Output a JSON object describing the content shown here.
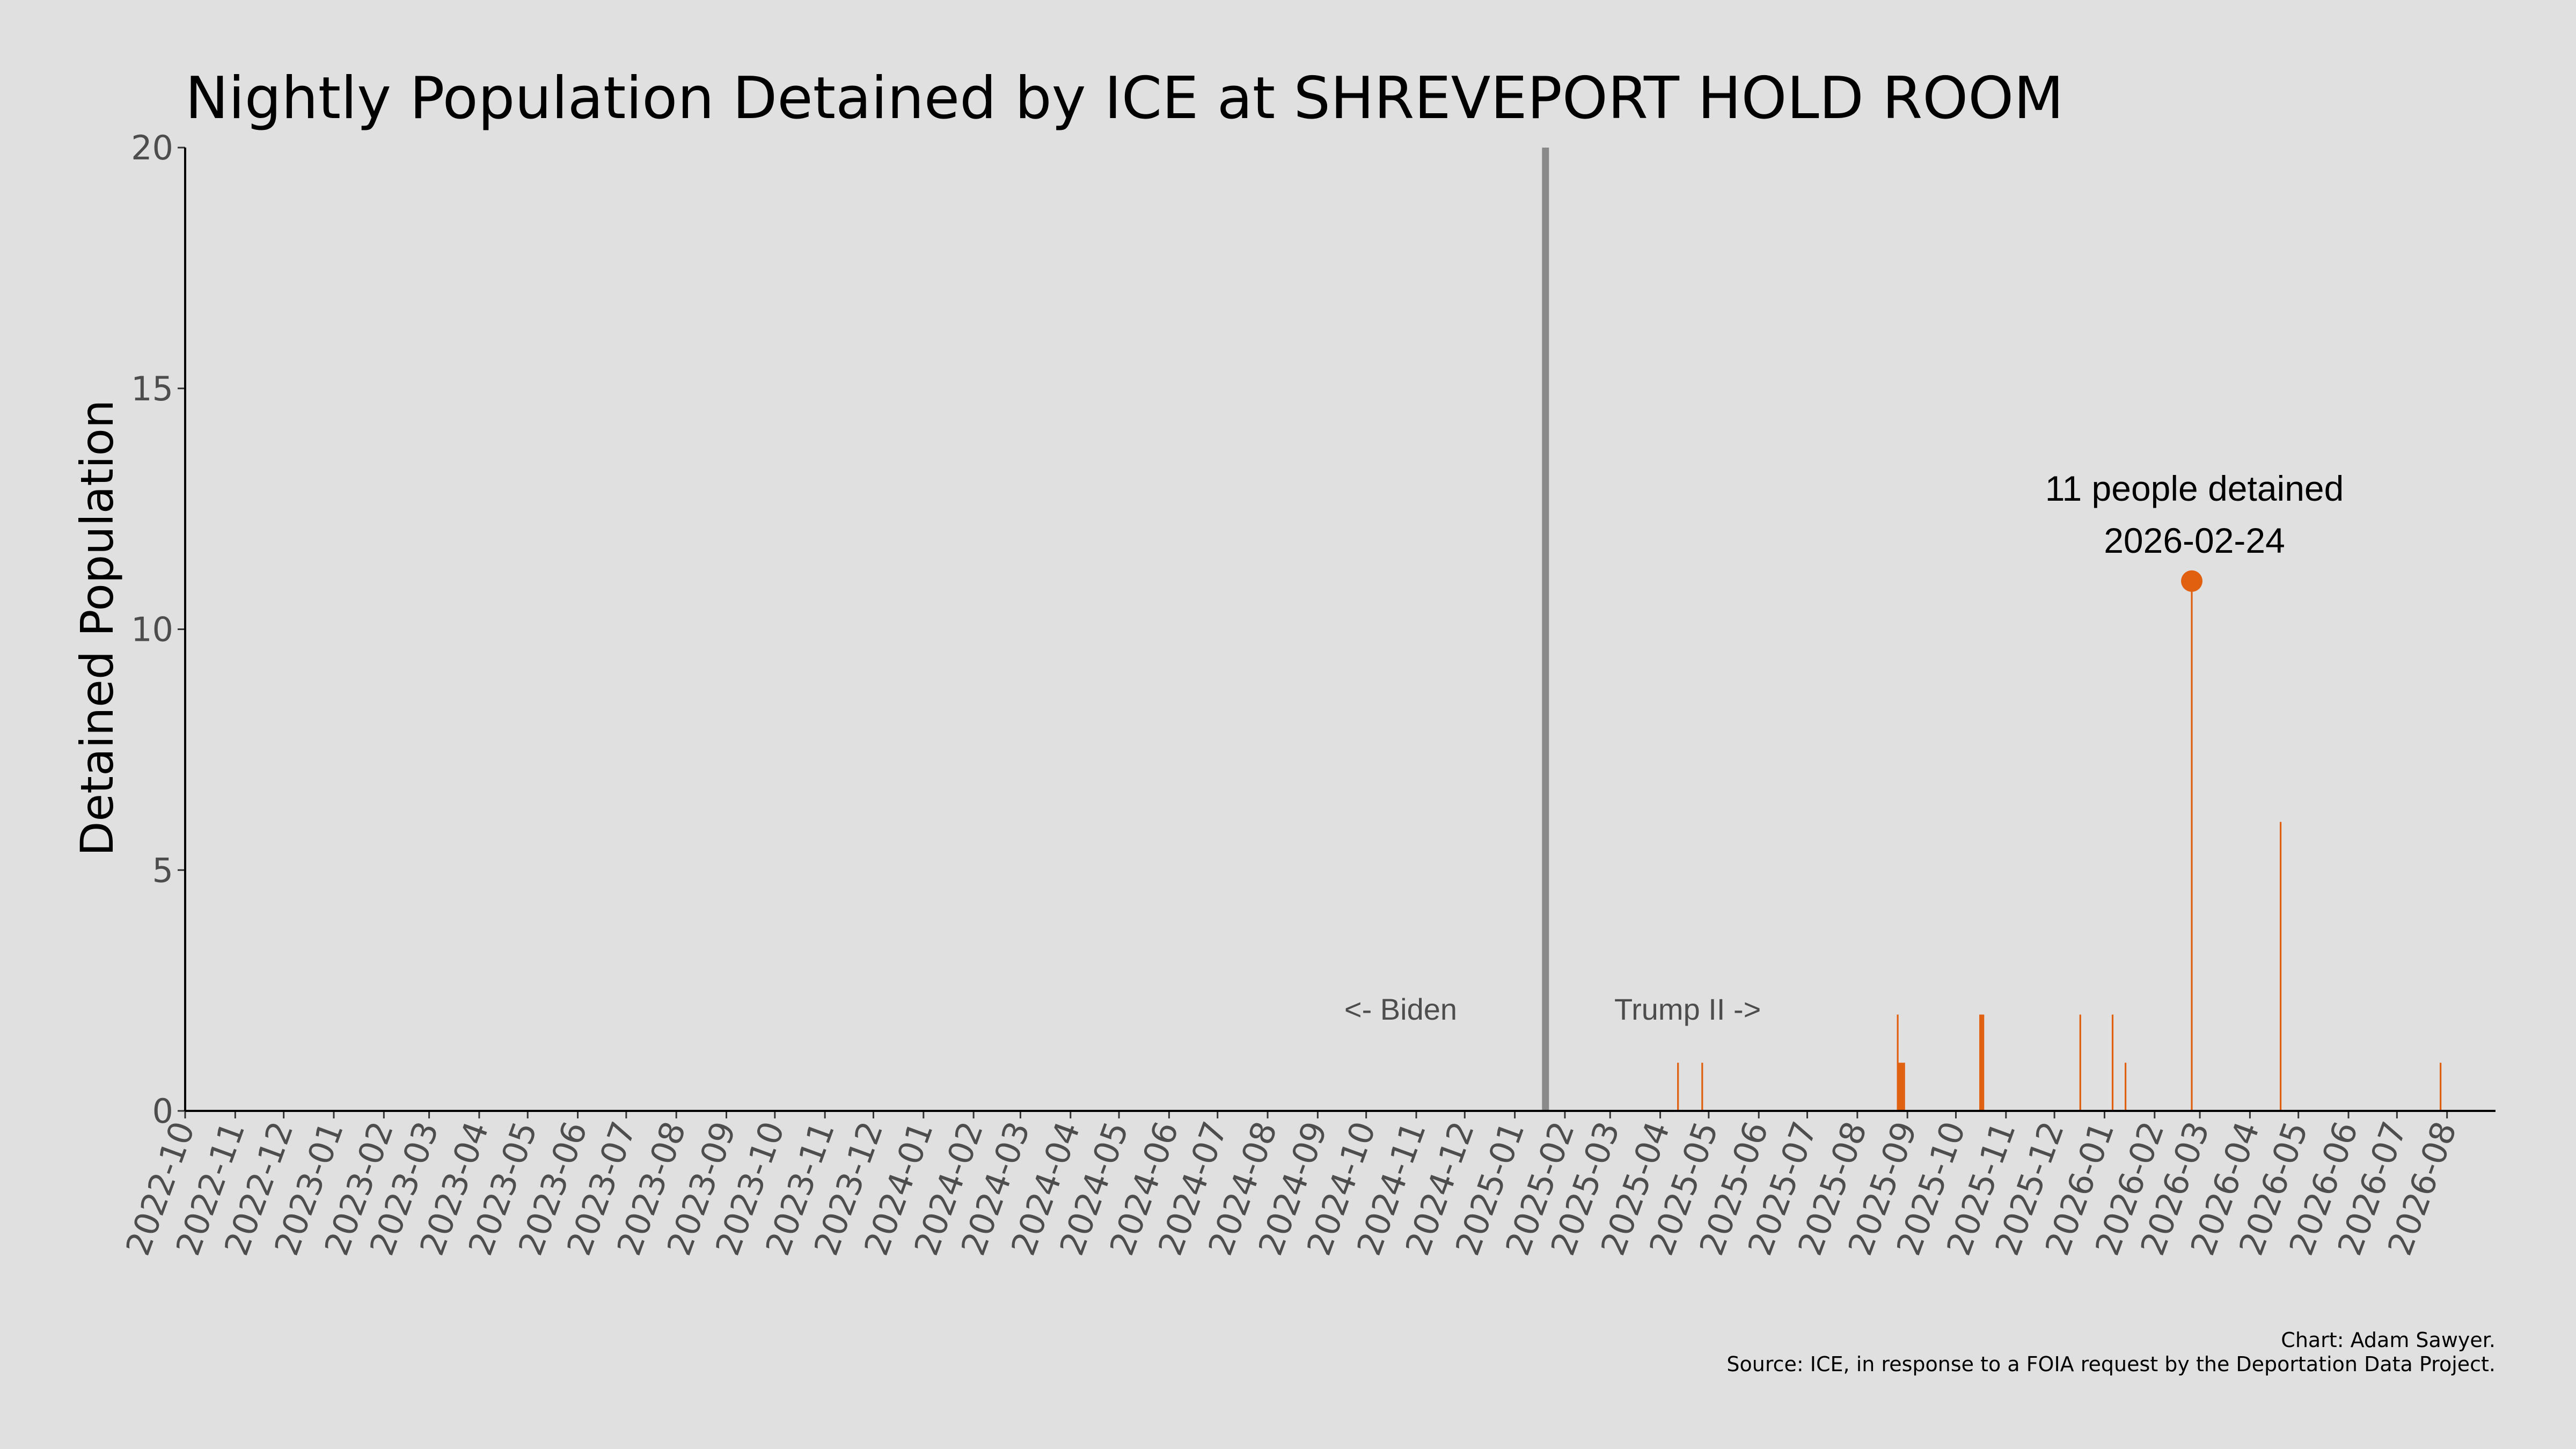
{
  "chart_data": {
    "type": "bar",
    "title": "Nightly Population Detained by ICE at SHREVEPORT HOLD ROOM",
    "ylabel": "Detained Population",
    "xlabel": "",
    "ylim": [
      0,
      20
    ],
    "xlim": [
      "2022-10-01",
      "2026-08-31"
    ],
    "y_ticks": [
      0,
      5,
      10,
      15,
      20
    ],
    "x_ticks": [
      "2022-10",
      "2022-11",
      "2022-12",
      "2023-01",
      "2023-02",
      "2023-03",
      "2023-04",
      "2023-05",
      "2023-06",
      "2023-07",
      "2023-08",
      "2023-09",
      "2023-10",
      "2023-11",
      "2023-12",
      "2024-01",
      "2024-02",
      "2024-03",
      "2024-04",
      "2024-05",
      "2024-06",
      "2024-07",
      "2024-08",
      "2024-09",
      "2024-10",
      "2024-11",
      "2024-12",
      "2025-01",
      "2025-02",
      "2025-03",
      "2025-04",
      "2025-05",
      "2025-06",
      "2025-07",
      "2025-08",
      "2025-09",
      "2025-10",
      "2025-11",
      "2025-12",
      "2026-01",
      "2026-02",
      "2026-03",
      "2026-04",
      "2026-05",
      "2026-06",
      "2026-07",
      "2026-08"
    ],
    "series_color": "#e06010",
    "points": [
      {
        "date": "2025-04-12",
        "value": 1
      },
      {
        "date": "2025-04-27",
        "value": 1
      },
      {
        "date": "2025-08-26",
        "value": 2
      },
      {
        "date": "2025-08-27",
        "value": 1
      },
      {
        "date": "2025-08-28",
        "value": 1
      },
      {
        "date": "2025-08-29",
        "value": 1
      },
      {
        "date": "2025-08-30",
        "value": 1
      },
      {
        "date": "2025-10-16",
        "value": 2
      },
      {
        "date": "2025-10-17",
        "value": 2
      },
      {
        "date": "2025-10-18",
        "value": 2
      },
      {
        "date": "2025-12-17",
        "value": 2
      },
      {
        "date": "2026-01-06",
        "value": 2
      },
      {
        "date": "2026-01-14",
        "value": 1
      },
      {
        "date": "2026-02-24",
        "value": 11
      },
      {
        "date": "2026-04-20",
        "value": 6
      },
      {
        "date": "2026-07-28",
        "value": 1
      }
    ],
    "divider": {
      "date": "2025-01-20",
      "color": "#8a8a8a"
    },
    "era_labels": {
      "left": "<- Biden",
      "right": "Trump II ->"
    },
    "peak_annotation": {
      "date": "2026-02-24",
      "value": 11,
      "line1": "11 people detained",
      "line2": "2026-02-24"
    },
    "credits": {
      "line1": "Chart: Adam Sawyer.",
      "line2": "Source: ICE, in response to a FOIA request by the Deportation Data Project."
    }
  }
}
